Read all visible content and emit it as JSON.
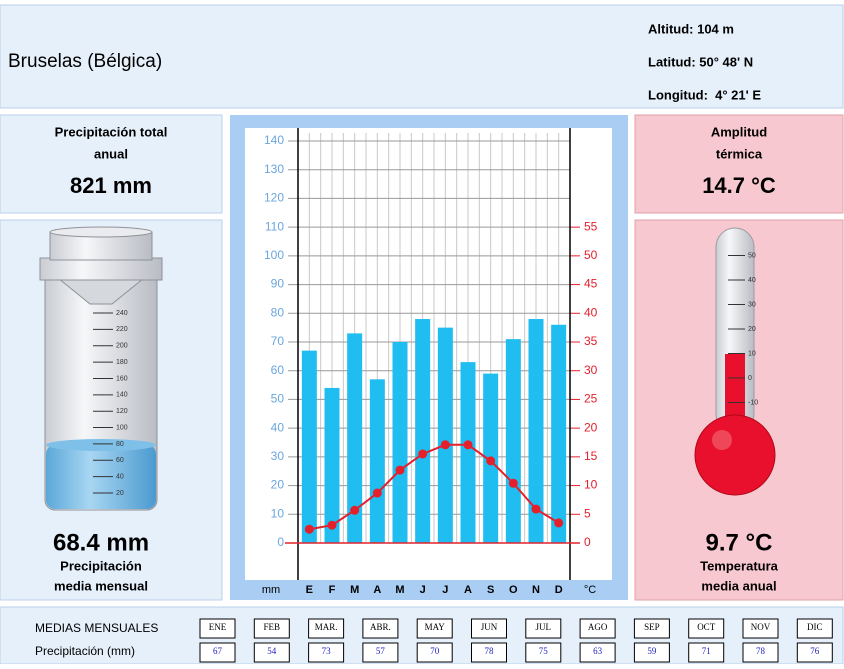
{
  "header": {
    "title": "Bruselas (Bélgica)",
    "altitude": "Altitud: 104 m",
    "latitude": "Latitud: 50° 48' N",
    "longitude": "Longitud:  4° 21' E"
  },
  "precip_total": {
    "label": [
      "Precipitación total",
      "anual"
    ],
    "value": "821 mm"
  },
  "precip_mean": {
    "value": "68.4 mm",
    "label": [
      "Precipitación",
      "media mensual"
    ]
  },
  "amplitude": {
    "label": [
      "Amplitud",
      "térmica"
    ],
    "value": "14.7 °C"
  },
  "temp_mean": {
    "value": "9.7 °C",
    "label": [
      "Temperatura",
      "media anual"
    ]
  },
  "gauge": {
    "ticks": [
      20,
      40,
      60,
      80,
      100,
      120,
      140,
      160,
      180,
      200,
      220,
      240
    ]
  },
  "thermometer": {
    "ticks": [
      50,
      40,
      30,
      20,
      10,
      0,
      -10
    ]
  },
  "chart_data": {
    "type": "bar",
    "categories": [
      "E",
      "F",
      "M",
      "A",
      "M",
      "J",
      "J",
      "A",
      "S",
      "O",
      "N",
      "D"
    ],
    "y_label": "mm",
    "y2_label": "°C",
    "series": [
      {
        "color": "#1fbdf0",
        "values": [
          67,
          54,
          73,
          57,
          70,
          78,
          75,
          63,
          59,
          71,
          78,
          76
        ]
      },
      {
        "type": "line",
        "axis": "y2",
        "color": "#e3202c",
        "values": [
          2.4,
          3.1,
          5.7,
          8.7,
          12.7,
          15.5,
          17.1,
          17.1,
          14.3,
          10.4,
          5.9,
          3.5
        ]
      }
    ],
    "ylim": [
      0,
      140
    ],
    "yticks": [
      0,
      10,
      20,
      30,
      40,
      50,
      60,
      70,
      80,
      90,
      100,
      110,
      120,
      130,
      140
    ],
    "y2lim": [
      0,
      70
    ],
    "y2ticks": [
      0,
      5,
      10,
      15,
      20,
      25,
      30,
      35,
      40,
      45,
      50,
      55
    ],
    "grid": true
  },
  "table": {
    "title": "MEDIAS MENSUALES",
    "months": [
      "ENE",
      "FEB",
      "MAR.",
      "ABR.",
      "MAY",
      "JUN",
      "JUL",
      "AGO",
      "SEP",
      "OCT",
      "NOV",
      "DIC"
    ],
    "row_label": "Precipitación (mm)"
  }
}
